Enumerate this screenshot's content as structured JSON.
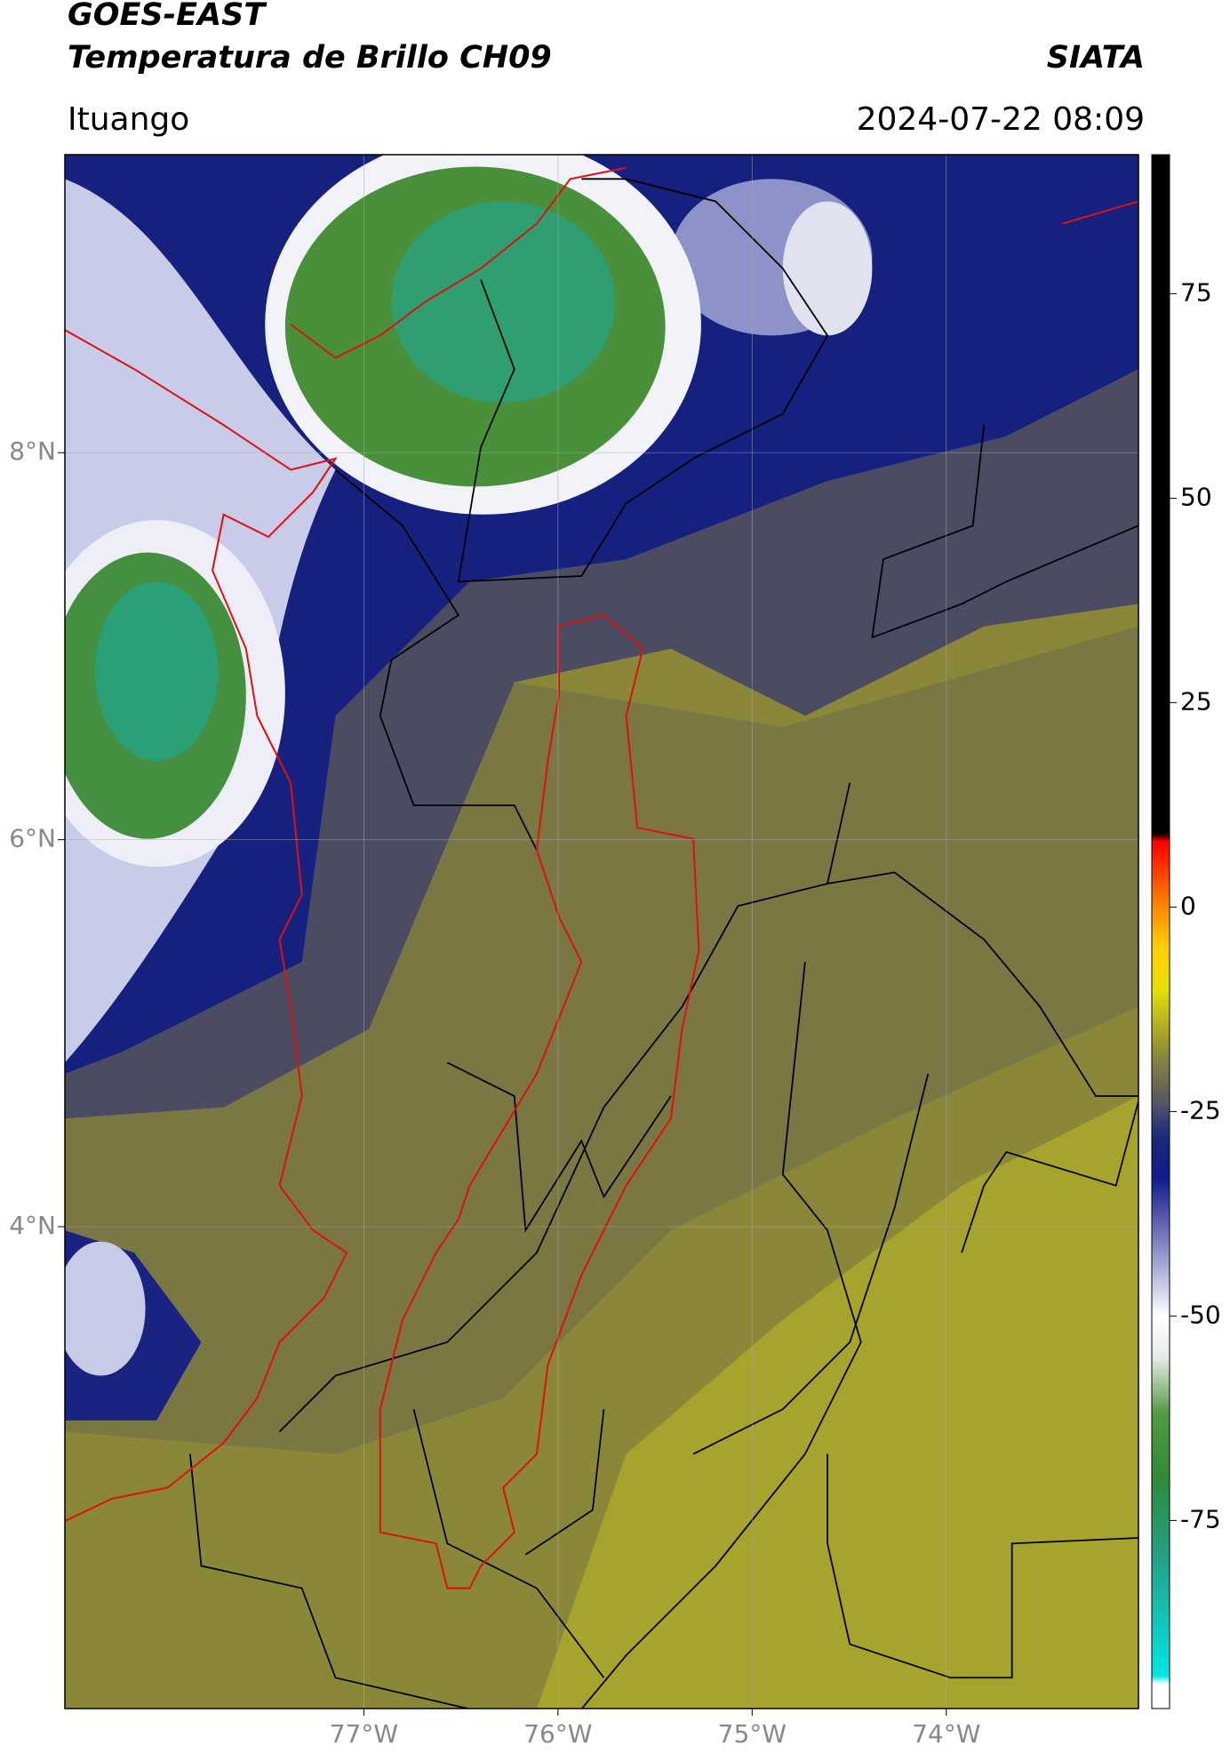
{
  "header": {
    "title": "GOES-EAST",
    "subtitle": "Temperatura de Brillo CH09",
    "brand": "SIATA",
    "location": "Ituango",
    "datetime": "2024-07-22 08:09"
  },
  "chart_data": {
    "type": "map",
    "xlim": [
      -78.54,
      -73.01
    ],
    "ylim": [
      1.51,
      9.54
    ],
    "xticks": [
      {
        "value": -77,
        "label": "77°W"
      },
      {
        "value": -76,
        "label": "76°W"
      },
      {
        "value": -75,
        "label": "75°W"
      },
      {
        "value": -74,
        "label": "74°W"
      }
    ],
    "yticks": [
      {
        "value": 8,
        "label": "8°N"
      },
      {
        "value": 6,
        "label": "6°N"
      },
      {
        "value": 4,
        "label": "4°N"
      }
    ],
    "grid": true,
    "colorbar": {
      "lim": [
        -98,
        92
      ],
      "ticks": [
        75,
        50,
        25,
        0,
        -25,
        -50,
        -75
      ],
      "colormap": [
        {
          "value": -98,
          "color": "#ffffff"
        },
        {
          "value": -95,
          "color": "#ffffff"
        },
        {
          "value": -94,
          "color": "#00e5e5"
        },
        {
          "value": -80,
          "color": "#22a38a"
        },
        {
          "value": -70,
          "color": "#2f8a3a"
        },
        {
          "value": -62,
          "color": "#4f9a3e"
        },
        {
          "value": -55,
          "color": "#e8ece8"
        },
        {
          "value": -50,
          "color": "#ffffff"
        },
        {
          "value": -42,
          "color": "#8c90c8"
        },
        {
          "value": -33,
          "color": "#101a8a"
        },
        {
          "value": -28,
          "color": "#1c2a7a"
        },
        {
          "value": -24,
          "color": "#555565"
        },
        {
          "value": -18,
          "color": "#8c8a3a"
        },
        {
          "value": -10,
          "color": "#e8e000"
        },
        {
          "value": -5,
          "color": "#ffd000"
        },
        {
          "value": 0,
          "color": "#ff8800"
        },
        {
          "value": 8,
          "color": "#ff0000"
        },
        {
          "value": 9,
          "color": "#000000"
        },
        {
          "value": 92,
          "color": "#000000"
        }
      ]
    }
  }
}
